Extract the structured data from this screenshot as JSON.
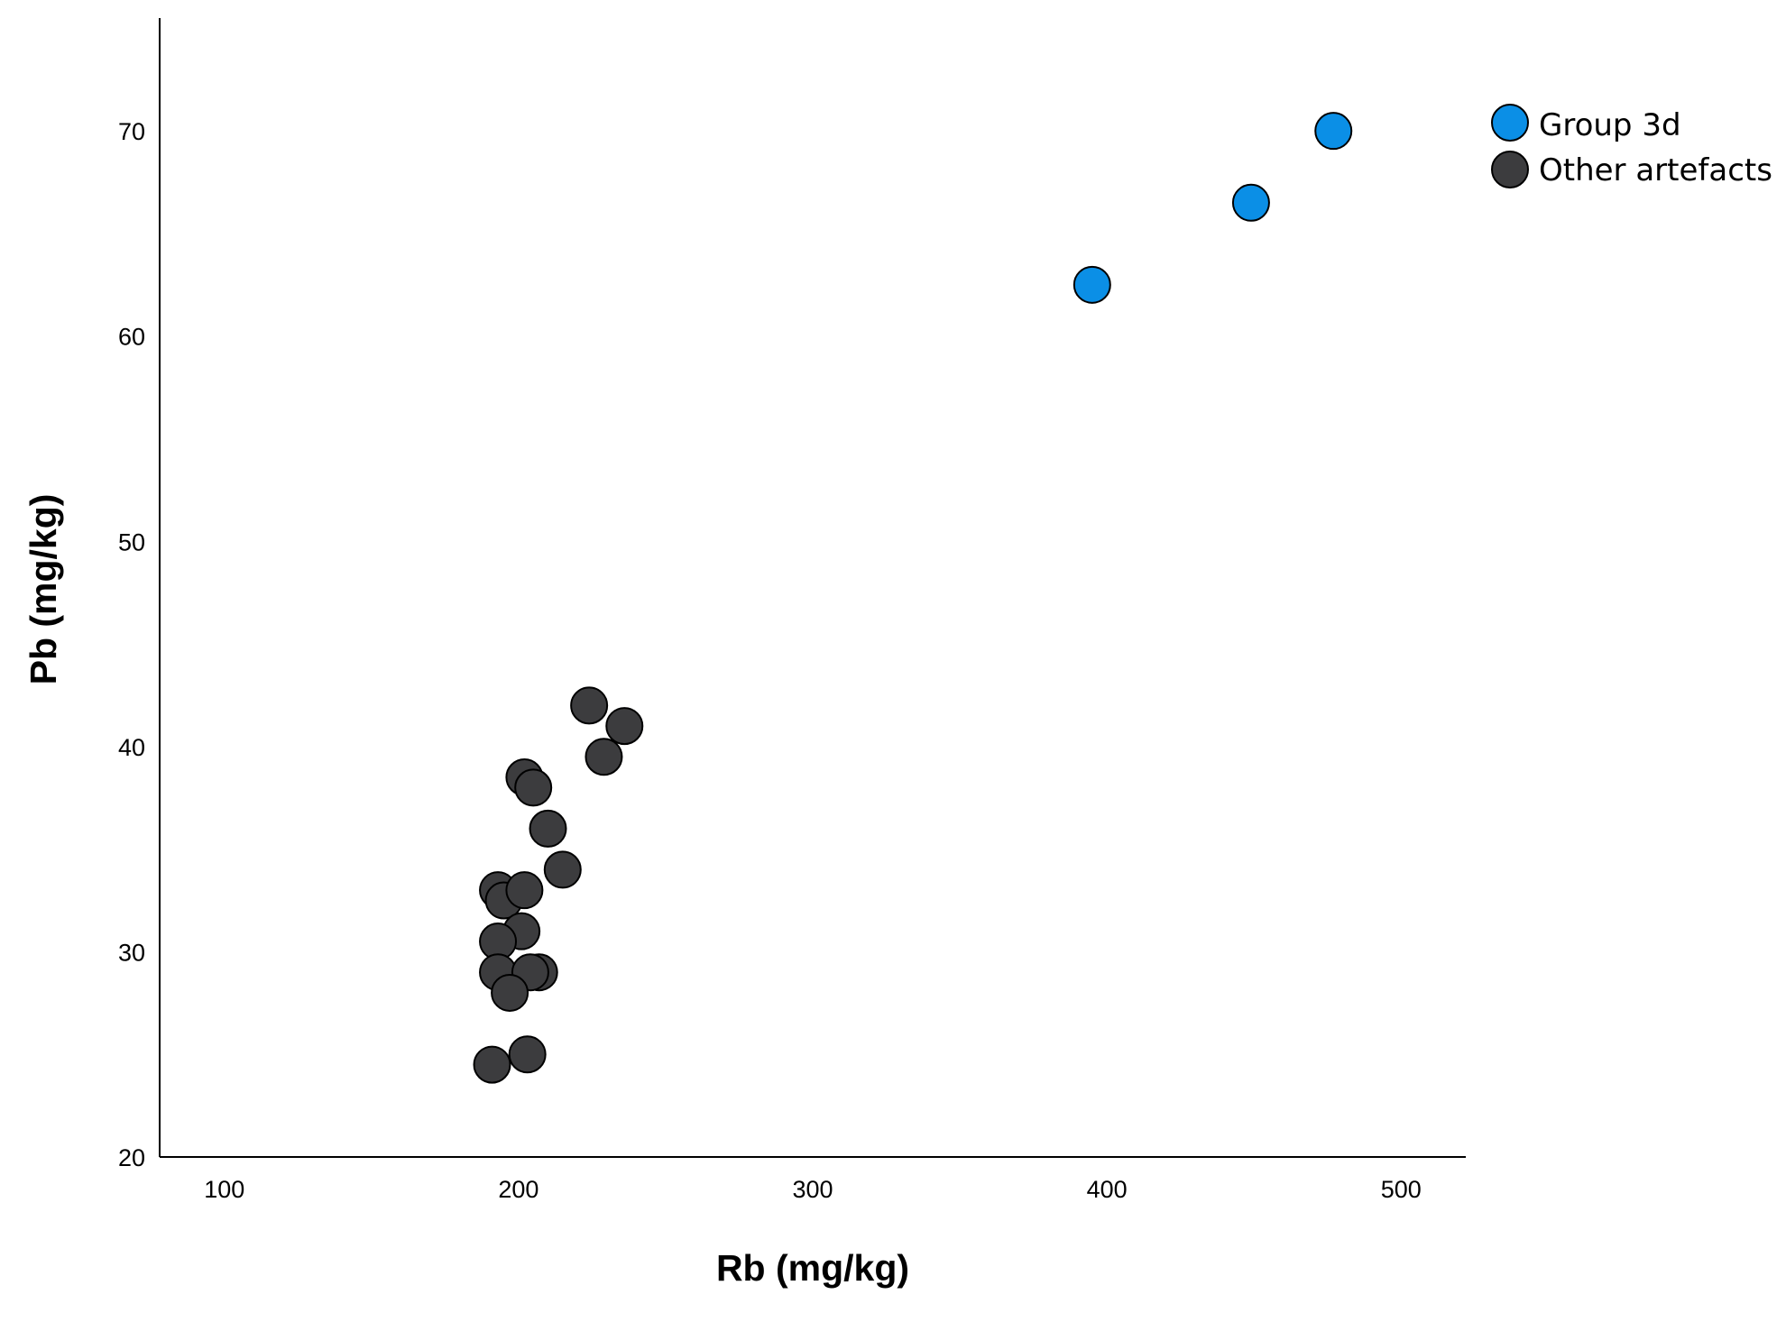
{
  "chart_data": {
    "type": "scatter",
    "title": "",
    "xlabel": "Rb (mg/kg)",
    "ylabel": "Pb (mg/kg)",
    "xlim": [
      78,
      522
    ],
    "ylim": [
      20,
      75.5
    ],
    "xticks": [
      100,
      200,
      300,
      400,
      500
    ],
    "yticks": [
      20,
      30,
      40,
      50,
      60,
      70
    ],
    "grid": false,
    "legend_position": "top-right",
    "series": [
      {
        "name": "Group 3d",
        "color": "#0b8fe6",
        "points": [
          {
            "x": 395,
            "y": 62.5
          },
          {
            "x": 449,
            "y": 66.5
          },
          {
            "x": 477,
            "y": 70
          }
        ]
      },
      {
        "name": "Other artefacts",
        "color": "#3c3c3e",
        "points": [
          {
            "x": 224,
            "y": 42
          },
          {
            "x": 236,
            "y": 41
          },
          {
            "x": 229,
            "y": 39.5
          },
          {
            "x": 202,
            "y": 38.5
          },
          {
            "x": 205,
            "y": 38
          },
          {
            "x": 210,
            "y": 36
          },
          {
            "x": 215,
            "y": 34
          },
          {
            "x": 193,
            "y": 33
          },
          {
            "x": 195,
            "y": 32.5
          },
          {
            "x": 202,
            "y": 33
          },
          {
            "x": 201,
            "y": 31
          },
          {
            "x": 193,
            "y": 30.5
          },
          {
            "x": 193,
            "y": 29
          },
          {
            "x": 207,
            "y": 29
          },
          {
            "x": 204,
            "y": 29
          },
          {
            "x": 197,
            "y": 28
          },
          {
            "x": 191,
            "y": 24.5
          },
          {
            "x": 203,
            "y": 25
          }
        ]
      }
    ]
  }
}
